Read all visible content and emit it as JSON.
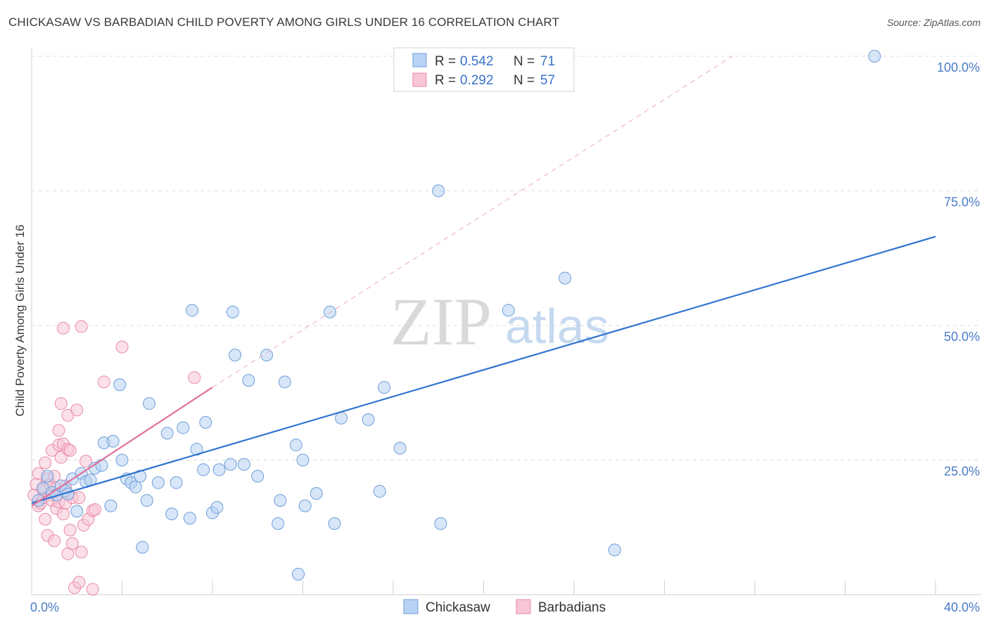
{
  "title": "CHICKASAW VS BARBADIAN CHILD POVERTY AMONG GIRLS UNDER 16 CORRELATION CHART",
  "source": "Source: ZipAtlas.com",
  "watermark": {
    "zip": "ZIP",
    "atlas": "atlas"
  },
  "colors": {
    "chickasaw_fill": "#b7d2f3",
    "chickasaw_stroke": "#6f9fd8",
    "chickasaw_line": "#2f74cf",
    "barbadian_fill": "#f8c6d6",
    "barbadian_stroke": "#e98aaa",
    "barbadian_line": "#e0709a",
    "grid": "#dddddd",
    "axis_text": "#4a7cc7"
  },
  "legend": {
    "rows": [
      {
        "r_label": "R = ",
        "r_value": "0.542",
        "n_label": "N = ",
        "n_value": "71"
      },
      {
        "r_label": "R = ",
        "r_value": "0.292",
        "n_label": "N = ",
        "n_value": "57"
      }
    ]
  },
  "chart_data": {
    "type": "scatter",
    "title": "CHICKASAW VS BARBADIAN CHILD POVERTY AMONG GIRLS UNDER 16 CORRELATION CHART",
    "xlabel": "",
    "ylabel": "Child Poverty Among Girls Under 16",
    "xlim": [
      0,
      40
    ],
    "ylim": [
      0,
      100
    ],
    "x_tick_labels": [
      "0.0%",
      "40.0%"
    ],
    "y_ticks": [
      25,
      50,
      75,
      100
    ],
    "y_tick_labels": [
      "25.0%",
      "50.0%",
      "75.0%",
      "100.0%"
    ],
    "grid": true,
    "legend_position": "top-center",
    "series": [
      {
        "name": "Chickasaw",
        "r": 0.542,
        "n": 71,
        "trend": {
          "x": [
            0,
            40
          ],
          "y": [
            17.0,
            66.5
          ]
        },
        "points": [
          [
            0.3,
            17.5
          ],
          [
            0.5,
            19.8
          ],
          [
            0.7,
            22
          ],
          [
            0.9,
            19
          ],
          [
            1.1,
            18.5
          ],
          [
            1.3,
            20.2
          ],
          [
            1.5,
            19.3
          ],
          [
            1.6,
            18.7
          ],
          [
            1.8,
            21.5
          ],
          [
            2.0,
            15.5
          ],
          [
            2.2,
            22.5
          ],
          [
            2.4,
            21
          ],
          [
            2.6,
            21.3
          ],
          [
            2.8,
            23.5
          ],
          [
            3.1,
            24
          ],
          [
            3.2,
            28.2
          ],
          [
            3.5,
            16.5
          ],
          [
            3.6,
            28.5
          ],
          [
            3.9,
            39
          ],
          [
            4.0,
            25
          ],
          [
            4.2,
            21.5
          ],
          [
            4.4,
            20.8
          ],
          [
            4.6,
            20
          ],
          [
            4.8,
            22
          ],
          [
            4.9,
            8.8
          ],
          [
            5.1,
            17.5
          ],
          [
            5.2,
            35.5
          ],
          [
            5.6,
            20.8
          ],
          [
            6.0,
            30
          ],
          [
            6.2,
            15
          ],
          [
            6.4,
            20.8
          ],
          [
            6.7,
            31
          ],
          [
            7.0,
            14.2
          ],
          [
            7.1,
            52.8
          ],
          [
            7.3,
            27
          ],
          [
            7.6,
            23.2
          ],
          [
            7.7,
            32
          ],
          [
            8.0,
            15.2
          ],
          [
            8.2,
            16.2
          ],
          [
            8.3,
            23.2
          ],
          [
            8.8,
            24.2
          ],
          [
            8.9,
            52.5
          ],
          [
            9.0,
            44.5
          ],
          [
            9.4,
            24.2
          ],
          [
            9.6,
            39.8
          ],
          [
            10.0,
            22
          ],
          [
            10.4,
            44.5
          ],
          [
            10.9,
            13.2
          ],
          [
            11.0,
            17.5
          ],
          [
            11.2,
            39.5
          ],
          [
            11.7,
            27.8
          ],
          [
            11.8,
            3.8
          ],
          [
            12.0,
            25
          ],
          [
            12.1,
            16.5
          ],
          [
            12.6,
            18.8
          ],
          [
            13.2,
            52.5
          ],
          [
            13.4,
            13.2
          ],
          [
            13.7,
            32.8
          ],
          [
            14.9,
            32.5
          ],
          [
            15.4,
            19.2
          ],
          [
            15.6,
            38.5
          ],
          [
            16.3,
            27.2
          ],
          [
            18.0,
            75
          ],
          [
            18.1,
            13.2
          ],
          [
            21.1,
            52.8
          ],
          [
            23.6,
            58.8
          ],
          [
            25.8,
            8.3
          ],
          [
            37.3,
            100
          ]
        ]
      },
      {
        "name": "Barbadians",
        "r": 0.292,
        "n": 57,
        "trend": {
          "x": [
            0,
            8
          ],
          "y": [
            16.5,
            38.5
          ]
        },
        "trend_dashed": {
          "x": [
            8,
            31
          ],
          "y": [
            38.5,
            100
          ]
        },
        "points": [
          [
            0.1,
            18.5
          ],
          [
            0.2,
            20.5
          ],
          [
            0.3,
            22.5
          ],
          [
            0.3,
            16.5
          ],
          [
            0.4,
            17
          ],
          [
            0.5,
            18
          ],
          [
            0.5,
            19.5
          ],
          [
            0.6,
            24.5
          ],
          [
            0.6,
            14
          ],
          [
            0.7,
            11
          ],
          [
            0.7,
            21.5
          ],
          [
            0.8,
            20.5
          ],
          [
            0.8,
            18.5
          ],
          [
            0.9,
            17.5
          ],
          [
            0.9,
            26.8
          ],
          [
            1.0,
            10
          ],
          [
            1.0,
            22
          ],
          [
            1.1,
            19.8
          ],
          [
            1.1,
            16
          ],
          [
            1.2,
            30.5
          ],
          [
            1.2,
            27.8
          ],
          [
            1.2,
            17.2
          ],
          [
            1.3,
            35.5
          ],
          [
            1.3,
            25.5
          ],
          [
            1.4,
            28
          ],
          [
            1.4,
            15
          ],
          [
            1.5,
            17
          ],
          [
            1.5,
            20.2
          ],
          [
            1.6,
            33.3
          ],
          [
            1.6,
            27
          ],
          [
            1.6,
            7.6
          ],
          [
            1.7,
            26.8
          ],
          [
            1.7,
            12
          ],
          [
            1.8,
            9.5
          ],
          [
            1.8,
            18
          ],
          [
            1.9,
            1.3
          ],
          [
            2.0,
            34.3
          ],
          [
            2.1,
            2.3
          ],
          [
            2.1,
            18
          ],
          [
            2.2,
            49.8
          ],
          [
            2.2,
            7.9
          ],
          [
            2.3,
            12.9
          ],
          [
            2.4,
            24.8
          ],
          [
            2.5,
            14
          ],
          [
            2.7,
            1
          ],
          [
            2.7,
            15.6
          ],
          [
            2.8,
            15.8
          ],
          [
            3.2,
            39.5
          ],
          [
            1.4,
            49.5
          ],
          [
            4.0,
            46
          ],
          [
            7.2,
            40.3
          ]
        ]
      }
    ]
  },
  "bottom_legend": [
    {
      "label": "Chickasaw"
    },
    {
      "label": "Barbadians"
    }
  ]
}
